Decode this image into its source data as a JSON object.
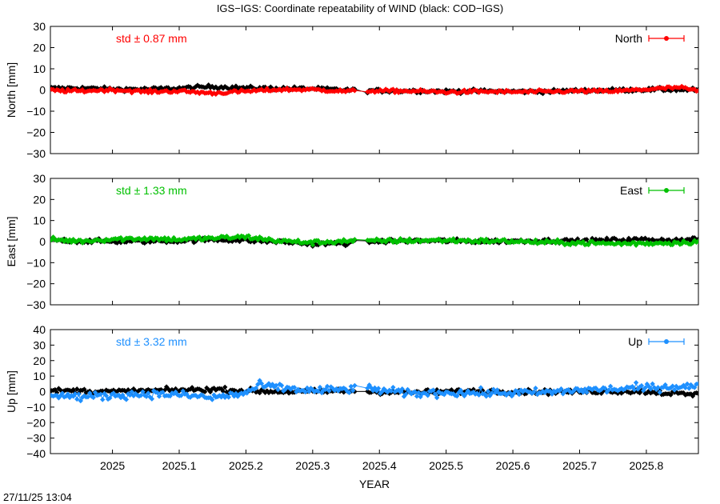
{
  "title": "IGS−IGS: Coordinate repeatability of WIND (black: COD−IGS)",
  "footer_timestamp": "27/11/25 13:04",
  "chart_data": {
    "type": "scatter",
    "xlabel": "YEAR",
    "xlim": [
      2024.907,
      2025.878
    ],
    "xticks": [
      2025,
      2025.1,
      2025.2,
      2025.3,
      2025.4,
      2025.5,
      2025.6,
      2025.7,
      2025.8
    ],
    "xtick_labels": [
      "2025",
      "2025.1",
      "2025.2",
      "2025.3",
      "2025.4",
      "2025.5",
      "2025.6",
      "2025.7",
      "2025.8"
    ],
    "gap": [
      2025.363,
      2025.382
    ],
    "grid": false,
    "legend_position": "top-right",
    "reference_series": {
      "color": "#000000",
      "description": "black: COD−IGS"
    },
    "panels": [
      {
        "ylabel": "North [mm]",
        "ylim": [
          -30,
          30
        ],
        "yticks": [
          30,
          20,
          10,
          0,
          -10,
          -20,
          -30
        ],
        "ytick_labels": [
          "30",
          "20",
          "10",
          "0",
          "−10",
          "−20",
          "−30"
        ],
        "legend": "North",
        "std_label": "std ± 0.87 mm",
        "color": "#ff0000",
        "series_points": [
          [
            2024.91,
            -0.2
          ],
          [
            2024.95,
            -0.5
          ],
          [
            2025.0,
            0.1
          ],
          [
            2025.05,
            -0.8
          ],
          [
            2025.1,
            -0.5
          ],
          [
            2025.15,
            -1.5
          ],
          [
            2025.2,
            -0.6
          ],
          [
            2025.25,
            0.2
          ],
          [
            2025.3,
            0.2
          ],
          [
            2025.35,
            -0.6
          ],
          [
            2025.38,
            -0.4
          ],
          [
            2025.45,
            -0.5
          ],
          [
            2025.5,
            -1.0
          ],
          [
            2025.55,
            -0.7
          ],
          [
            2025.6,
            -0.9
          ],
          [
            2025.65,
            -0.8
          ],
          [
            2025.7,
            -0.5
          ],
          [
            2025.75,
            -0.6
          ],
          [
            2025.8,
            0.3
          ],
          [
            2025.85,
            1.2
          ],
          [
            2025.878,
            -0.5
          ]
        ],
        "ref_points": [
          [
            2024.91,
            0.8
          ],
          [
            2024.95,
            0.9
          ],
          [
            2025.0,
            0.4
          ],
          [
            2025.05,
            0.4
          ],
          [
            2025.1,
            0.8
          ],
          [
            2025.15,
            1.6
          ],
          [
            2025.2,
            0.9
          ],
          [
            2025.25,
            0.8
          ],
          [
            2025.3,
            0.6
          ],
          [
            2025.35,
            0.0
          ],
          [
            2025.38,
            -0.3
          ],
          [
            2025.45,
            -0.4
          ],
          [
            2025.5,
            -0.6
          ],
          [
            2025.55,
            -0.5
          ],
          [
            2025.6,
            -0.7
          ],
          [
            2025.65,
            -0.7
          ],
          [
            2025.7,
            -0.3
          ],
          [
            2025.75,
            -0.1
          ],
          [
            2025.8,
            0.2
          ],
          [
            2025.85,
            0.2
          ],
          [
            2025.878,
            0.0
          ]
        ],
        "series_amplitude": 0.8,
        "ref_amplitude": 0.9
      },
      {
        "ylabel": "East [mm]",
        "ylim": [
          -30,
          30
        ],
        "yticks": [
          30,
          20,
          10,
          0,
          -10,
          -20,
          -30
        ],
        "ytick_labels": [
          "30",
          "20",
          "10",
          "0",
          "−10",
          "−20",
          "−30"
        ],
        "legend": "East",
        "std_label": "std ± 1.33 mm",
        "color": "#00c000",
        "series_points": [
          [
            2024.91,
            1.0
          ],
          [
            2024.95,
            0.2
          ],
          [
            2025.0,
            1.2
          ],
          [
            2025.05,
            1.5
          ],
          [
            2025.1,
            1.0
          ],
          [
            2025.15,
            1.6
          ],
          [
            2025.2,
            2.2
          ],
          [
            2025.25,
            0.3
          ],
          [
            2025.3,
            -0.5
          ],
          [
            2025.35,
            0.3
          ],
          [
            2025.38,
            0.2
          ],
          [
            2025.45,
            0.5
          ],
          [
            2025.5,
            0.6
          ],
          [
            2025.55,
            0.3
          ],
          [
            2025.6,
            0.2
          ],
          [
            2025.65,
            -0.4
          ],
          [
            2025.7,
            -0.6
          ],
          [
            2025.75,
            -1.0
          ],
          [
            2025.8,
            -0.8
          ],
          [
            2025.85,
            -0.5
          ],
          [
            2025.878,
            0.0
          ]
        ],
        "ref_points": [
          [
            2024.91,
            0.8
          ],
          [
            2024.95,
            0.3
          ],
          [
            2025.0,
            0.1
          ],
          [
            2025.05,
            0.2
          ],
          [
            2025.1,
            0.4
          ],
          [
            2025.15,
            1.0
          ],
          [
            2025.2,
            0.6
          ],
          [
            2025.25,
            0.0
          ],
          [
            2025.3,
            -1.2
          ],
          [
            2025.35,
            -0.8
          ],
          [
            2025.38,
            0.0
          ],
          [
            2025.45,
            0.4
          ],
          [
            2025.5,
            0.4
          ],
          [
            2025.55,
            0.1
          ],
          [
            2025.6,
            0.3
          ],
          [
            2025.65,
            0.4
          ],
          [
            2025.7,
            0.3
          ],
          [
            2025.75,
            0.8
          ],
          [
            2025.8,
            1.0
          ],
          [
            2025.85,
            0.6
          ],
          [
            2025.878,
            1.2
          ]
        ],
        "series_amplitude": 1.1,
        "ref_amplitude": 1.0
      },
      {
        "ylabel": "Up [mm]",
        "ylim": [
          -40,
          40
        ],
        "yticks": [
          40,
          30,
          20,
          10,
          0,
          -10,
          -20,
          -30,
          -40
        ],
        "ytick_labels": [
          "40",
          "30",
          "20",
          "10",
          "0",
          "−10",
          "−20",
          "−30",
          "−40"
        ],
        "legend": "Up",
        "std_label": "std ± 3.32 mm",
        "color": "#1e90ff",
        "series_points": [
          [
            2024.91,
            -1.5
          ],
          [
            2024.95,
            -3.5
          ],
          [
            2025.0,
            -2.5
          ],
          [
            2025.05,
            -1.5
          ],
          [
            2025.1,
            -2.0
          ],
          [
            2025.15,
            -4.0
          ],
          [
            2025.2,
            -1.0
          ],
          [
            2025.22,
            4.0
          ],
          [
            2025.25,
            2.5
          ],
          [
            2025.3,
            0.5
          ],
          [
            2025.35,
            1.5
          ],
          [
            2025.38,
            2.0
          ],
          [
            2025.45,
            -1.5
          ],
          [
            2025.5,
            -0.5
          ],
          [
            2025.55,
            -1.0
          ],
          [
            2025.6,
            -0.8
          ],
          [
            2025.65,
            -0.5
          ],
          [
            2025.7,
            1.0
          ],
          [
            2025.75,
            1.5
          ],
          [
            2025.8,
            2.5
          ],
          [
            2025.85,
            3.5
          ],
          [
            2025.878,
            3.0
          ]
        ],
        "ref_points": [
          [
            2024.91,
            0.5
          ],
          [
            2024.95,
            0.5
          ],
          [
            2025.0,
            0.0
          ],
          [
            2025.05,
            0.5
          ],
          [
            2025.1,
            1.0
          ],
          [
            2025.15,
            1.5
          ],
          [
            2025.2,
            0.5
          ],
          [
            2025.25,
            0.0
          ],
          [
            2025.3,
            0.0
          ],
          [
            2025.35,
            0.5
          ],
          [
            2025.38,
            0.0
          ],
          [
            2025.45,
            -0.5
          ],
          [
            2025.5,
            0.0
          ],
          [
            2025.55,
            0.2
          ],
          [
            2025.6,
            0.0
          ],
          [
            2025.65,
            -0.3
          ],
          [
            2025.7,
            0.0
          ],
          [
            2025.75,
            0.3
          ],
          [
            2025.8,
            0.0
          ],
          [
            2025.85,
            -1.5
          ],
          [
            2025.878,
            -2.0
          ]
        ],
        "series_amplitude": 2.6,
        "ref_amplitude": 1.6
      }
    ]
  }
}
